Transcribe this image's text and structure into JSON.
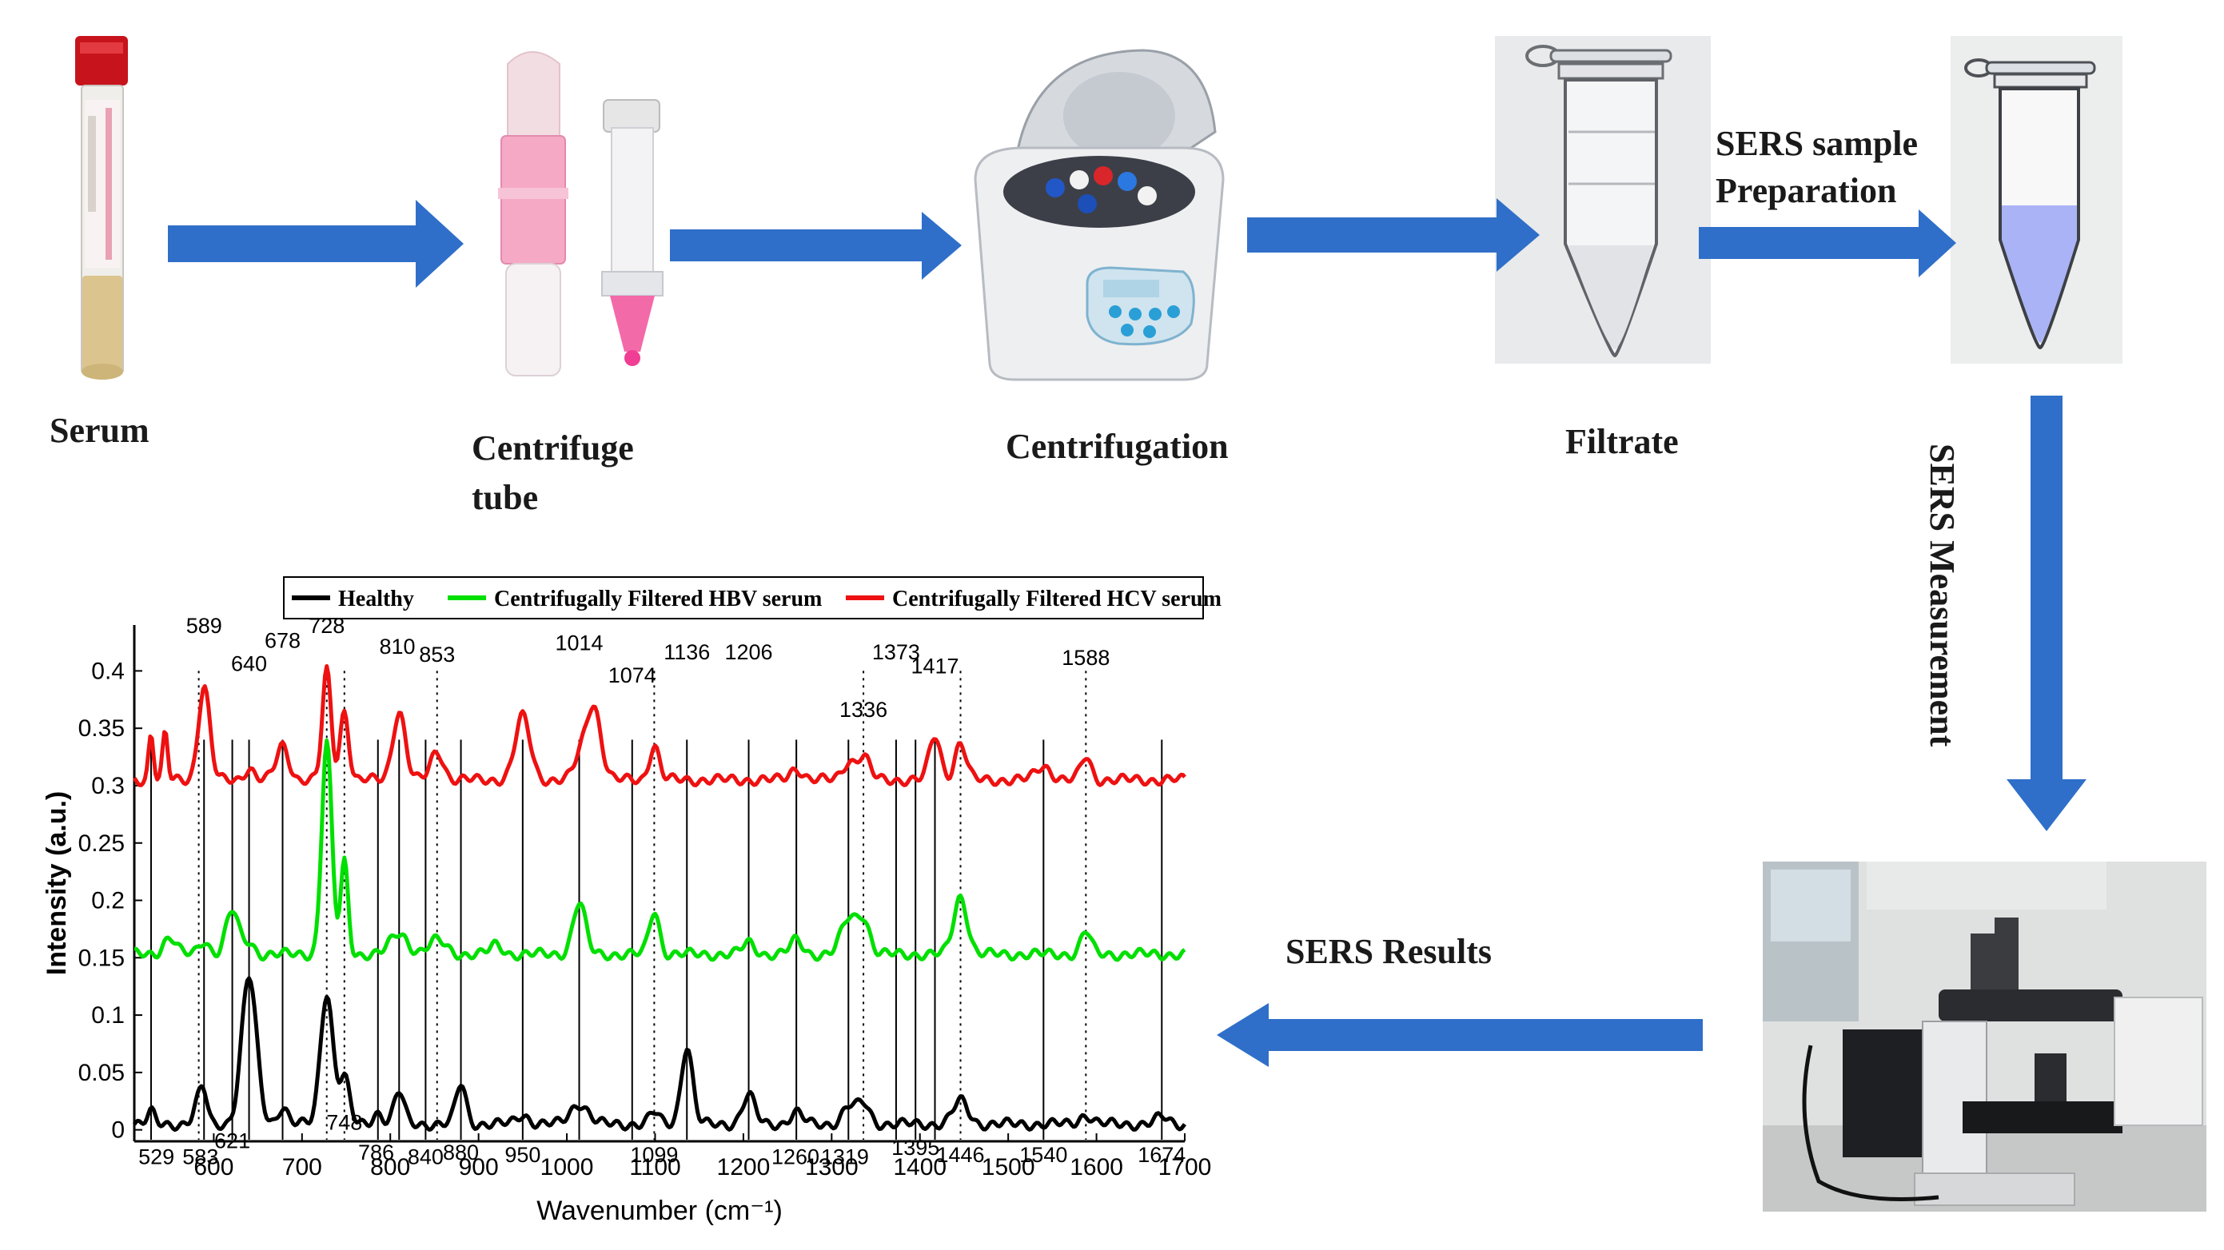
{
  "stages": {
    "serum": "Serum",
    "centrifuge_tube_line1": "Centrifuge",
    "centrifuge_tube_line2": "tube",
    "centrifugation": "Centrifugation",
    "filtrate": "Filtrate",
    "prep_line1": "SERS sample",
    "prep_line2": "Preparation",
    "measurement": "SERS Measurement",
    "results": "SERS Results"
  },
  "colors": {
    "arrow": "#2f6fc9",
    "healthy": "#000000",
    "hbv": "#00e000",
    "hcv": "#ee1111",
    "liquid": "#aab3f5"
  },
  "icons": [
    "serum-tube-icon",
    "centrifuge-filter-tube-icon",
    "centrifuge-machine-icon",
    "filtrate-tube-icon",
    "sers-sample-tube-icon",
    "raman-microscope-icon"
  ],
  "chart_data": {
    "type": "line",
    "xlabel": "Wavenumber (cm⁻¹)",
    "ylabel": "Intensity (a.u.)",
    "xlim": [
      510,
      1700
    ],
    "ylim": [
      -0.01,
      0.44
    ],
    "x_ticks": [
      600,
      700,
      800,
      900,
      1000,
      1100,
      1200,
      1300,
      1400,
      1500,
      1600,
      1700
    ],
    "y_ticks": [
      0,
      0.05,
      0.1,
      0.15,
      0.2,
      0.25,
      0.3,
      0.35,
      0.4
    ],
    "y_tick_labels": [
      "0",
      "0.05",
      "0.1",
      "0.15",
      "0.2",
      "0.25",
      "0.3",
      "0.35",
      "0.4"
    ],
    "legend": [
      "Healthy",
      "Centrifugally Filtered HBV serum",
      "Centrifugally Filtered HCV serum"
    ],
    "legend_position": "top",
    "solid_lines": [
      529,
      589,
      621,
      640,
      678,
      786,
      810,
      840,
      880,
      950,
      1014,
      1074,
      1136,
      1206,
      1260,
      1319,
      1373,
      1395,
      1417,
      1540,
      1674
    ],
    "dotted_lines": [
      583,
      728,
      748,
      853,
      1099,
      1336,
      1446,
      1588
    ],
    "top_labels": [
      "589",
      "728",
      "678",
      "640",
      "810",
      "853",
      "1014",
      "1074",
      "1136",
      "1206",
      "1373",
      "1336",
      "1417",
      "1588"
    ],
    "bottom_labels": [
      "529",
      "583",
      "621",
      "748",
      "786",
      "840",
      "880",
      "950",
      "1099",
      "1260",
      "1319",
      "1395",
      "1446",
      "1540",
      "1674"
    ],
    "series": [
      {
        "name": "Healthy",
        "baseline": 0.005,
        "peaks": [
          [
            529,
            0.01,
            6
          ],
          [
            583,
            0.018,
            8
          ],
          [
            589,
            0.02,
            6
          ],
          [
            640,
            0.128,
            12
          ],
          [
            678,
            0.015,
            8
          ],
          [
            728,
            0.115,
            10
          ],
          [
            748,
            0.04,
            8
          ],
          [
            786,
            0.01,
            8
          ],
          [
            810,
            0.028,
            8
          ],
          [
            880,
            0.035,
            8
          ],
          [
            950,
            0.008,
            10
          ],
          [
            1014,
            0.018,
            14
          ],
          [
            1099,
            0.01,
            8
          ],
          [
            1136,
            0.068,
            9
          ],
          [
            1206,
            0.025,
            10
          ],
          [
            1260,
            0.01,
            10
          ],
          [
            1319,
            0.015,
            10
          ],
          [
            1336,
            0.018,
            10
          ],
          [
            1446,
            0.02,
            12
          ],
          [
            1588,
            0.008,
            10
          ],
          [
            1674,
            0.006,
            10
          ]
        ]
      },
      {
        "name": "Centrifugally Filtered HBV serum",
        "baseline": 0.153,
        "peaks": [
          [
            550,
            0.015,
            10
          ],
          [
            589,
            0.012,
            8
          ],
          [
            621,
            0.038,
            10
          ],
          [
            640,
            0.01,
            8
          ],
          [
            728,
            0.185,
            8
          ],
          [
            748,
            0.08,
            6
          ],
          [
            810,
            0.018,
            14
          ],
          [
            853,
            0.012,
            14
          ],
          [
            920,
            0.008,
            10
          ],
          [
            1014,
            0.045,
            10
          ],
          [
            1099,
            0.038,
            8
          ],
          [
            1206,
            0.01,
            10
          ],
          [
            1260,
            0.012,
            10
          ],
          [
            1319,
            0.03,
            12
          ],
          [
            1336,
            0.03,
            10
          ],
          [
            1446,
            0.05,
            11
          ],
          [
            1588,
            0.02,
            8
          ]
        ]
      },
      {
        "name": "Centrifugally Filtered HCV serum",
        "baseline": 0.305,
        "peaks": [
          [
            529,
            0.04,
            4
          ],
          [
            545,
            0.04,
            4
          ],
          [
            589,
            0.082,
            9
          ],
          [
            640,
            0.01,
            8
          ],
          [
            678,
            0.03,
            10
          ],
          [
            728,
            0.095,
            7
          ],
          [
            748,
            0.06,
            7
          ],
          [
            810,
            0.06,
            10
          ],
          [
            853,
            0.025,
            10
          ],
          [
            950,
            0.055,
            12
          ],
          [
            1014,
            0.015,
            10
          ],
          [
            1030,
            0.065,
            12
          ],
          [
            1099,
            0.03,
            8
          ],
          [
            1260,
            0.01,
            10
          ],
          [
            1319,
            0.015,
            10
          ],
          [
            1336,
            0.02,
            10
          ],
          [
            1417,
            0.038,
            9
          ],
          [
            1446,
            0.032,
            9
          ],
          [
            1540,
            0.012,
            12
          ],
          [
            1588,
            0.02,
            8
          ]
        ]
      }
    ]
  }
}
